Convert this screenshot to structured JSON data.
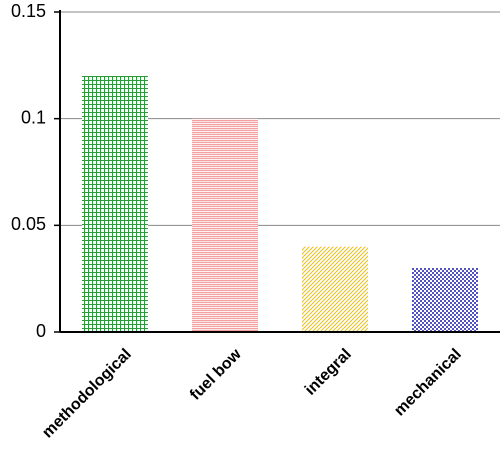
{
  "chart_data": {
    "type": "bar",
    "categories": [
      "methodological",
      "fuel bow",
      "integral",
      "mechanical"
    ],
    "values": [
      0.12,
      0.1,
      0.04,
      0.03
    ],
    "colors": [
      "#2e9a3e",
      "#f08080",
      "#e8c020",
      "#1a1ab0"
    ],
    "ylim": [
      0,
      0.15
    ],
    "yticks": [
      0,
      0.05,
      0.1,
      0.15
    ],
    "grid": true
  }
}
